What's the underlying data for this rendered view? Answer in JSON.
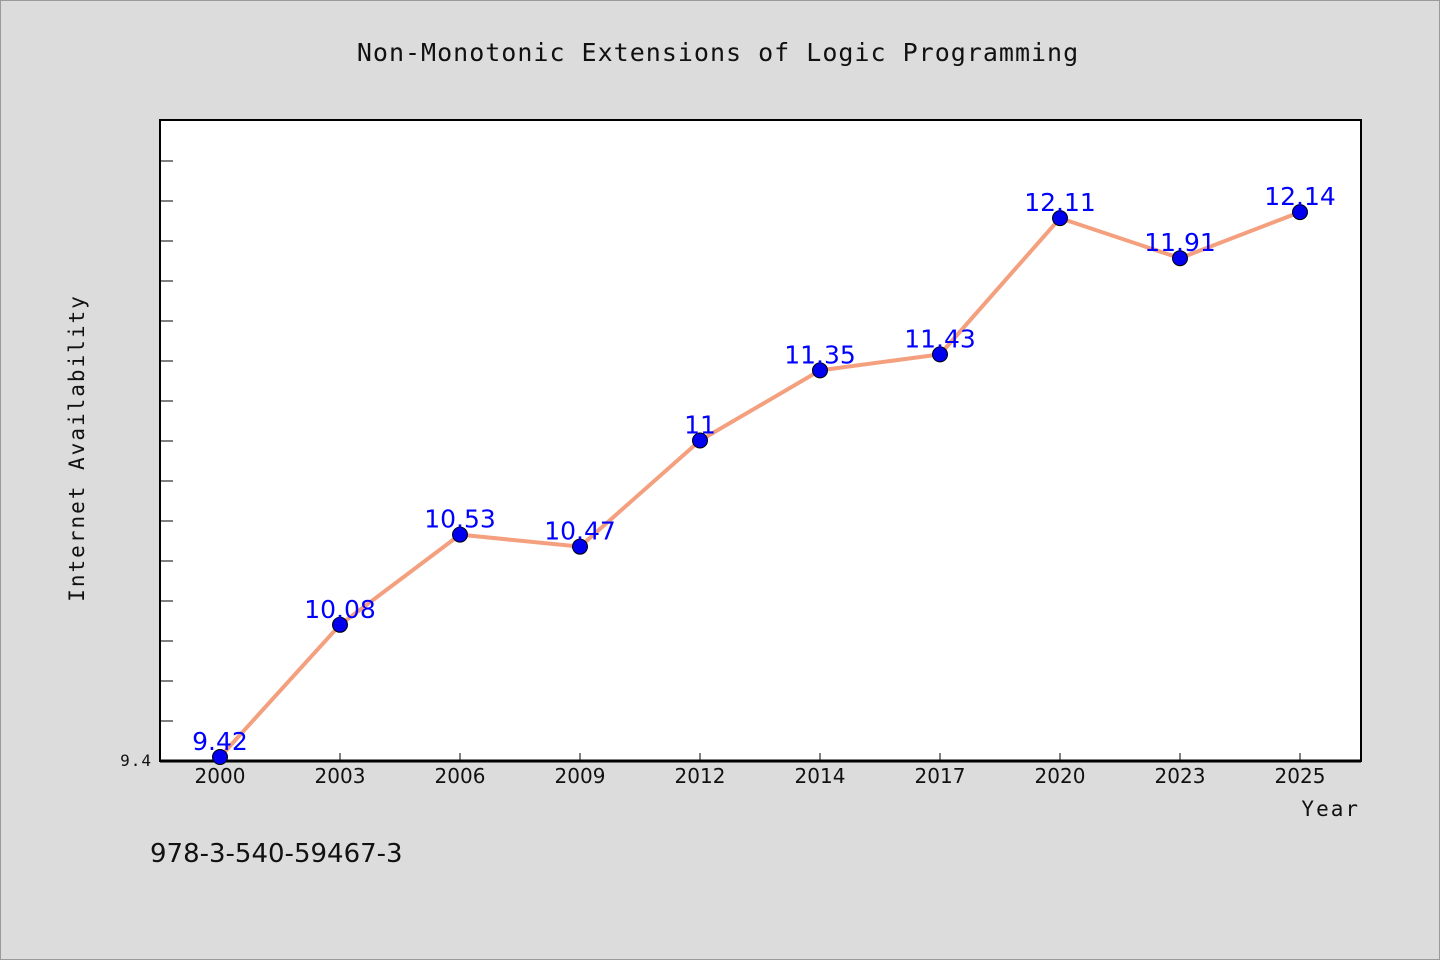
{
  "chart_data": {
    "type": "line",
    "title": "Non-Monotonic Extensions of Logic Programming",
    "xlabel": "Year",
    "ylabel": "Internet Availability",
    "categories": [
      "2000",
      "2003",
      "2006",
      "2009",
      "2012",
      "2014",
      "2017",
      "2020",
      "2023",
      "2025"
    ],
    "series": [
      {
        "values": [
          9.42,
          10.08,
          10.53,
          10.47,
          11,
          11.35,
          11.43,
          12.11,
          11.91,
          12.14
        ]
      }
    ],
    "data_labels": [
      "9.42",
      "10.08",
      "10.53",
      "10.47",
      "11",
      "11.35",
      "11.43",
      "12.11",
      "11.91",
      "12.14"
    ],
    "y_tick_labels": [
      "9.4"
    ],
    "ylim": [
      9.4,
      12.6
    ],
    "grid": false,
    "legend": "none",
    "colors": {
      "line": "#f4a07f",
      "marker": "#0000ee",
      "label": "#0000ff",
      "background": "#dcdcdc",
      "plot_background": "#ffffff"
    }
  },
  "footer": {
    "isbn": "978-3-540-59467-3"
  }
}
